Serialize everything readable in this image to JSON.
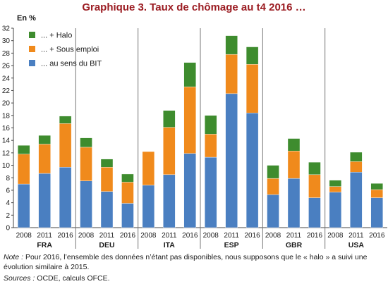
{
  "title": "Graphique 3. Taux de chômage au t4 2016 …",
  "note_label": "Note :",
  "note_text": "Pour 2016, l’ensemble des données n’étant pas disponibles, nous supposons que le « halo » a suivi une évolution similaire à 2015.",
  "sources_label": "Sources :",
  "sources_text": "OCDE, calculs OFCE.",
  "colors": {
    "bit": "#4a7fc1",
    "emploi": "#f08a1c",
    "halo": "#3e8c2e"
  },
  "chart_data": {
    "type": "bar",
    "stacked": true,
    "ylabel": "En %",
    "ylim": [
      0,
      32
    ],
    "yticks": [
      0,
      2,
      4,
      6,
      8,
      10,
      12,
      14,
      16,
      18,
      20,
      22,
      24,
      26,
      28,
      30,
      32
    ],
    "groups": [
      "FRA",
      "DEU",
      "ITA",
      "ESP",
      "GBR",
      "USA"
    ],
    "years": [
      "2008",
      "2011",
      "2016"
    ],
    "legend": [
      "... + Halo",
      "... + Sous emploi",
      "... au sens du BIT"
    ],
    "legend_position": "top-left",
    "grid": false,
    "series": [
      {
        "name": "... au sens du BIT",
        "color": "#4a7fc1",
        "values": [
          7.0,
          8.7,
          9.7,
          7.5,
          5.8,
          3.9,
          6.8,
          8.5,
          11.9,
          11.3,
          21.5,
          18.4,
          5.3,
          7.9,
          4.8,
          5.7,
          8.9,
          4.8
        ]
      },
      {
        "name": "... + Sous emploi",
        "color": "#f08a1c",
        "values": [
          4.8,
          4.7,
          7.0,
          5.4,
          3.9,
          3.4,
          5.4,
          7.6,
          10.7,
          3.7,
          6.3,
          7.8,
          2.6,
          4.4,
          3.7,
          0.9,
          1.7,
          1.3
        ]
      },
      {
        "name": "... + Halo",
        "color": "#3e8c2e",
        "values": [
          1.4,
          1.4,
          1.2,
          1.5,
          1.3,
          1.3,
          0.0,
          2.7,
          3.9,
          3.0,
          3.0,
          2.8,
          2.1,
          2.0,
          2.0,
          1.0,
          1.5,
          1.0
        ]
      }
    ]
  }
}
